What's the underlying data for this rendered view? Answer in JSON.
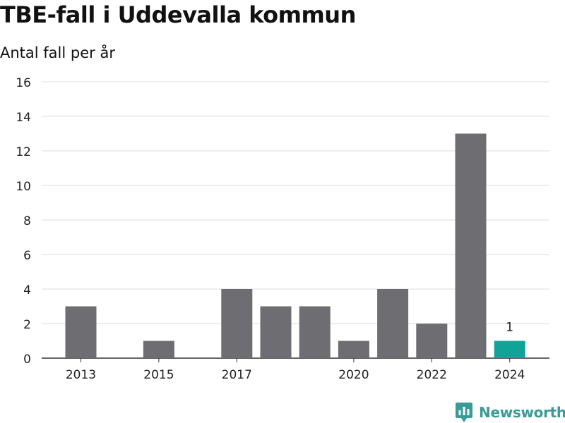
{
  "header": {
    "title": "TBE-fall i Uddevalla kommun",
    "subtitle": "Antal fall per år"
  },
  "brand": {
    "name": "Newsworthy",
    "color": "#3a9c97",
    "icon": "bar-chart-pin-icon"
  },
  "colors": {
    "bar": "#6e6d72",
    "highlight": "#10a398",
    "grid": "#dddddd",
    "axis": "#333333"
  },
  "chart_data": {
    "type": "bar",
    "title": "TBE-fall i Uddevalla kommun",
    "subtitle": "Antal fall per år",
    "categories": [
      "2013",
      "2014",
      "2015",
      "2016",
      "2017",
      "2018",
      "2019",
      "2020",
      "2021",
      "2022",
      "2023",
      "2024"
    ],
    "x_tick_labels": [
      "2013",
      "",
      "2015",
      "",
      "2017",
      "",
      "",
      "2020",
      "",
      "2022",
      "",
      "2024"
    ],
    "values": [
      3,
      0,
      1,
      0,
      4,
      3,
      3,
      1,
      4,
      2,
      13,
      1
    ],
    "highlight_index": 11,
    "data_labels": [
      {
        "category": "2024",
        "text": "1"
      }
    ],
    "ylim": [
      0,
      16
    ],
    "yticks": [
      0,
      2,
      4,
      6,
      8,
      10,
      12,
      14,
      16
    ],
    "grid": true,
    "legend": "none"
  }
}
